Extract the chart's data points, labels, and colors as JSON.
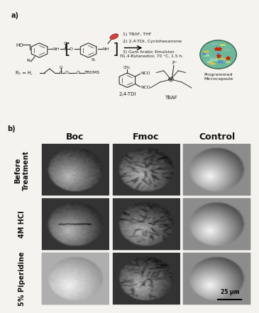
{
  "fig_label_a": "a)",
  "fig_label_b": "b)",
  "col_labels": [
    "Boc",
    "Fmoc",
    "Control"
  ],
  "row_labels": [
    "Before\nTreatment",
    "4M HCl",
    "5% Piperidine"
  ],
  "scale_bar_text": "25 μm",
  "programmed_label": "Programmed\nMicrocapsule",
  "step1": "1) TBAF, THF",
  "step2": "2) 2,4-TDI, Cyclohexanone",
  "step3": "3) Gum Arabic Emulsion\n1,4-Butanediol, 70 °C, 1.5 h.",
  "tdi_label": "2,4-TDI",
  "tbaf_label": "TBAF",
  "r1_label": "R₁ = H,",
  "bg_color": "#f5f3ef",
  "col_label_fontsize": 9,
  "row_label_fontsize": 7,
  "sem_bg_dark": 0.22,
  "sem_bg_medium": 0.3,
  "sem_bg_light_panel": 0.75
}
